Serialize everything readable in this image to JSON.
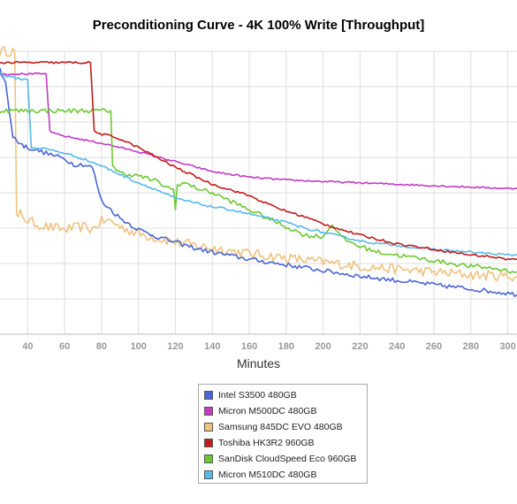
{
  "chart_data": {
    "type": "line",
    "title": "Preconditioning Curve - 4K 100% Write [Throughput]",
    "xlabel": "Minutes",
    "ylabel": "",
    "xlim": [
      25,
      305
    ],
    "ylim": [
      0,
      1
    ],
    "x_ticks": [
      40,
      60,
      80,
      100,
      120,
      140,
      160,
      180,
      200,
      220,
      240,
      260,
      280,
      300
    ],
    "grid": true,
    "legend_position": "bottom-center",
    "series": [
      {
        "name": "Intel S3500 480GB",
        "color": "#4a66d6",
        "x": [
          25,
          26,
          28,
          30,
          32,
          34,
          36,
          38,
          40,
          45,
          50,
          55,
          60,
          65,
          70,
          75,
          80,
          85,
          90,
          100,
          110,
          120,
          130,
          140,
          160,
          180,
          200,
          220,
          240,
          260,
          280,
          300,
          305
        ],
        "y": [
          0.94,
          0.91,
          0.89,
          0.79,
          0.7,
          0.685,
          0.675,
          0.665,
          0.66,
          0.65,
          0.64,
          0.63,
          0.62,
          0.6,
          0.6,
          0.59,
          0.47,
          0.44,
          0.41,
          0.37,
          0.345,
          0.325,
          0.305,
          0.29,
          0.265,
          0.245,
          0.225,
          0.205,
          0.19,
          0.175,
          0.16,
          0.145,
          0.14
        ]
      },
      {
        "name": "Micron M500DC 480GB",
        "color": "#c13bc4",
        "x": [
          25,
          40,
          50,
          52,
          54,
          60,
          80,
          100,
          120,
          140,
          160,
          180,
          200,
          220,
          240,
          260,
          280,
          300,
          305
        ],
        "y": [
          0.92,
          0.92,
          0.92,
          0.72,
          0.71,
          0.7,
          0.675,
          0.645,
          0.61,
          0.575,
          0.555,
          0.545,
          0.54,
          0.535,
          0.53,
          0.525,
          0.52,
          0.515,
          0.515
        ]
      },
      {
        "name": "Samsung 845DC EVO 480GB",
        "color": "#f0c27f",
        "x": [
          25,
          33,
          34,
          35,
          36,
          40,
          50,
          60,
          70,
          75,
          80,
          85,
          90,
          100,
          120,
          140,
          160,
          180,
          200,
          220,
          240,
          260,
          280,
          300,
          305
        ],
        "y": [
          1.0,
          1.0,
          0.42,
          0.4,
          0.43,
          0.4,
          0.38,
          0.37,
          0.38,
          0.37,
          0.4,
          0.4,
          0.38,
          0.355,
          0.325,
          0.305,
          0.285,
          0.27,
          0.255,
          0.24,
          0.23,
          0.22,
          0.21,
          0.205,
          0.205
        ]
      },
      {
        "name": "Toshiba HK3R2 960GB",
        "color": "#c41b1b",
        "x": [
          25,
          40,
          60,
          74,
          76,
          78,
          85,
          90,
          100,
          110,
          120,
          130,
          140,
          150,
          160,
          170,
          180,
          190,
          200,
          210,
          220,
          230,
          240,
          250,
          260,
          270,
          280,
          290,
          300,
          305
        ],
        "y": [
          0.96,
          0.96,
          0.96,
          0.96,
          0.72,
          0.71,
          0.7,
          0.69,
          0.66,
          0.625,
          0.59,
          0.56,
          0.53,
          0.51,
          0.49,
          0.46,
          0.435,
          0.415,
          0.39,
          0.37,
          0.35,
          0.335,
          0.32,
          0.31,
          0.3,
          0.29,
          0.28,
          0.275,
          0.265,
          0.265
        ]
      },
      {
        "name": "SanDisk CloudSpeed Eco 960GB",
        "color": "#6cc933",
        "x": [
          25,
          40,
          60,
          80,
          85,
          86,
          88,
          90,
          100,
          110,
          115,
          119,
          120,
          121,
          125,
          130,
          140,
          150,
          160,
          170,
          180,
          190,
          200,
          205,
          210,
          220,
          230,
          240,
          250,
          260,
          270,
          280,
          290,
          300,
          305
        ],
        "y": [
          0.79,
          0.79,
          0.79,
          0.79,
          0.79,
          0.6,
          0.58,
          0.57,
          0.56,
          0.54,
          0.52,
          0.51,
          0.44,
          0.53,
          0.535,
          0.52,
          0.5,
          0.47,
          0.44,
          0.41,
          0.38,
          0.35,
          0.345,
          0.39,
          0.34,
          0.31,
          0.29,
          0.28,
          0.27,
          0.26,
          0.25,
          0.24,
          0.235,
          0.225,
          0.22
        ]
      },
      {
        "name": "Micron M510DC 480GB",
        "color": "#57b9ea",
        "x": [
          25,
          30,
          38,
          40,
          42,
          50,
          60,
          70,
          80,
          90,
          100,
          110,
          120,
          130,
          140,
          150,
          160,
          170,
          180,
          190,
          200,
          210,
          220,
          230,
          240,
          250,
          260,
          270,
          280,
          290,
          300,
          305
        ],
        "y": [
          0.92,
          0.91,
          0.9,
          0.9,
          0.66,
          0.655,
          0.64,
          0.62,
          0.595,
          0.565,
          0.535,
          0.51,
          0.48,
          0.465,
          0.45,
          0.44,
          0.425,
          0.41,
          0.395,
          0.375,
          0.36,
          0.345,
          0.33,
          0.32,
          0.315,
          0.305,
          0.3,
          0.295,
          0.29,
          0.285,
          0.28,
          0.28
        ]
      }
    ]
  }
}
